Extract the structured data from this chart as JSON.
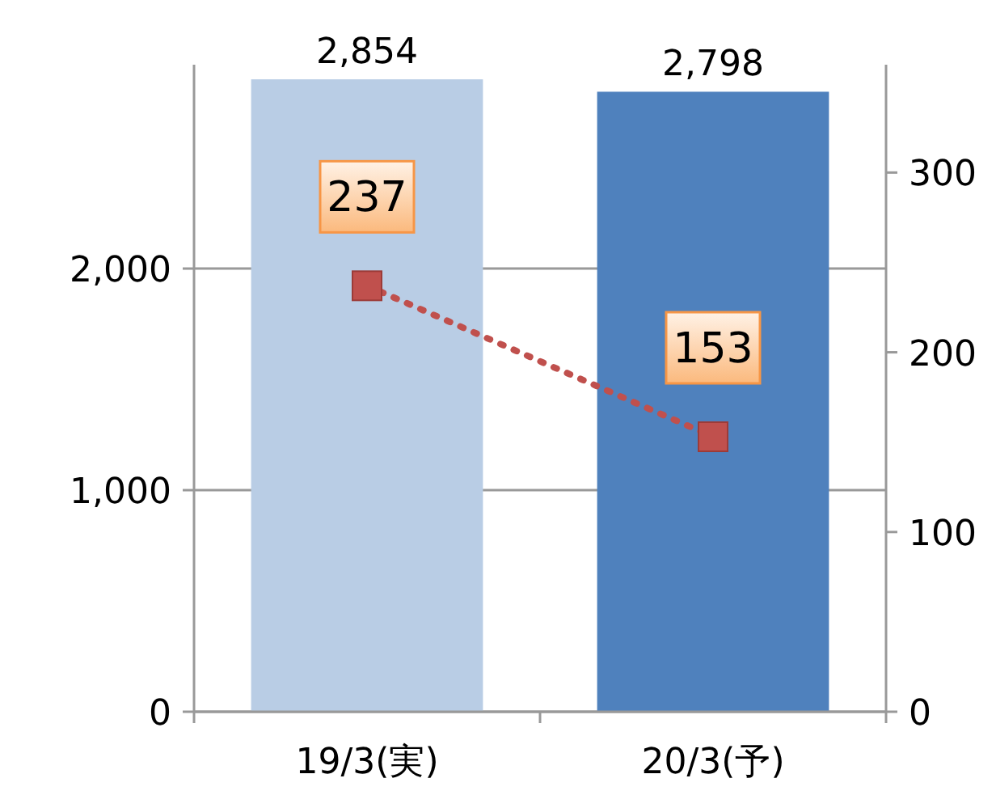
{
  "chart_data": {
    "type": "bar",
    "categories": [
      "19/3(実)",
      "20/3(予)"
    ],
    "series": [
      {
        "colors": [
          "#b9cde5",
          "#4f81bd"
        ],
        "values": [
          2854,
          2798
        ],
        "value_labels": [
          "2,854",
          "2,798"
        ]
      },
      {
        "type": "line",
        "axis": "y2",
        "color": "#c0504d",
        "marker": "square",
        "line_style": "dotted",
        "values": [
          237,
          153
        ],
        "value_labels": [
          "237",
          "153"
        ]
      }
    ],
    "ylim": [
      0,
      2920
    ],
    "yticks": [
      {
        "value": 0,
        "label": "0"
      },
      {
        "value": 1000,
        "label": "1,000"
      },
      {
        "value": 2000,
        "label": "2,000"
      }
    ],
    "y2lim": [
      0,
      360
    ],
    "y2ticks": [
      0,
      100,
      200,
      300
    ],
    "grid": "y"
  }
}
